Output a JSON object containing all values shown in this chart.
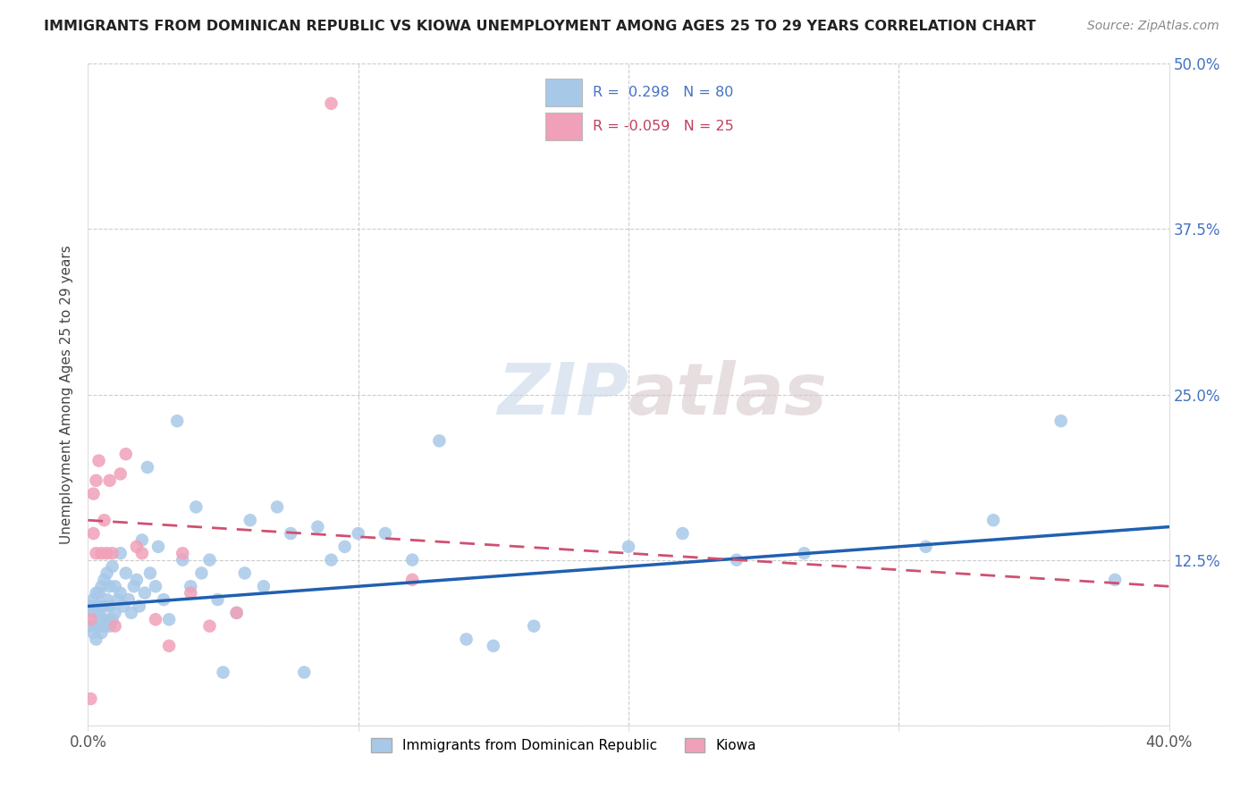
{
  "title": "IMMIGRANTS FROM DOMINICAN REPUBLIC VS KIOWA UNEMPLOYMENT AMONG AGES 25 TO 29 YEARS CORRELATION CHART",
  "source": "Source: ZipAtlas.com",
  "ylabel": "Unemployment Among Ages 25 to 29 years",
  "xlim": [
    0.0,
    0.4
  ],
  "ylim": [
    0.0,
    0.5
  ],
  "xticks": [
    0.0,
    0.1,
    0.2,
    0.3,
    0.4
  ],
  "yticks": [
    0.0,
    0.125,
    0.25,
    0.375,
    0.5
  ],
  "xtick_labels": [
    "0.0%",
    "",
    "",
    "",
    "40.0%"
  ],
  "ytick_labels": [
    "",
    "12.5%",
    "25.0%",
    "37.5%",
    "50.0%"
  ],
  "blue_R": 0.298,
  "blue_N": 80,
  "pink_R": -0.059,
  "pink_N": 25,
  "blue_color": "#a8c8e8",
  "pink_color": "#f0a0b8",
  "blue_line_color": "#2060b0",
  "pink_line_color": "#d05070",
  "legend_label_blue": "Immigrants from Dominican Republic",
  "legend_label_pink": "Kiowa",
  "watermark": "ZIPatlas",
  "blue_trend_start": 0.09,
  "blue_trend_end": 0.15,
  "pink_trend_start": 0.155,
  "pink_trend_end": 0.105,
  "blue_x": [
    0.001,
    0.001,
    0.002,
    0.002,
    0.002,
    0.003,
    0.003,
    0.003,
    0.003,
    0.004,
    0.004,
    0.004,
    0.005,
    0.005,
    0.005,
    0.005,
    0.006,
    0.006,
    0.006,
    0.007,
    0.007,
    0.007,
    0.008,
    0.008,
    0.008,
    0.009,
    0.009,
    0.01,
    0.01,
    0.011,
    0.012,
    0.012,
    0.013,
    0.014,
    0.015,
    0.016,
    0.017,
    0.018,
    0.019,
    0.02,
    0.021,
    0.022,
    0.023,
    0.025,
    0.026,
    0.028,
    0.03,
    0.033,
    0.035,
    0.038,
    0.04,
    0.042,
    0.045,
    0.048,
    0.05,
    0.055,
    0.058,
    0.06,
    0.065,
    0.07,
    0.075,
    0.08,
    0.085,
    0.09,
    0.095,
    0.1,
    0.11,
    0.12,
    0.13,
    0.14,
    0.15,
    0.165,
    0.2,
    0.22,
    0.24,
    0.265,
    0.31,
    0.335,
    0.36,
    0.38
  ],
  "blue_y": [
    0.075,
    0.09,
    0.07,
    0.085,
    0.095,
    0.065,
    0.075,
    0.09,
    0.1,
    0.075,
    0.085,
    0.1,
    0.07,
    0.08,
    0.09,
    0.105,
    0.075,
    0.09,
    0.11,
    0.08,
    0.095,
    0.115,
    0.075,
    0.09,
    0.105,
    0.08,
    0.12,
    0.085,
    0.105,
    0.095,
    0.1,
    0.13,
    0.09,
    0.115,
    0.095,
    0.085,
    0.105,
    0.11,
    0.09,
    0.14,
    0.1,
    0.195,
    0.115,
    0.105,
    0.135,
    0.095,
    0.08,
    0.23,
    0.125,
    0.105,
    0.165,
    0.115,
    0.125,
    0.095,
    0.04,
    0.085,
    0.115,
    0.155,
    0.105,
    0.165,
    0.145,
    0.04,
    0.15,
    0.125,
    0.135,
    0.145,
    0.145,
    0.125,
    0.215,
    0.065,
    0.06,
    0.075,
    0.135,
    0.145,
    0.125,
    0.13,
    0.135,
    0.155,
    0.23,
    0.11
  ],
  "pink_x": [
    0.001,
    0.001,
    0.002,
    0.002,
    0.003,
    0.003,
    0.004,
    0.005,
    0.006,
    0.007,
    0.008,
    0.009,
    0.01,
    0.012,
    0.014,
    0.018,
    0.02,
    0.025,
    0.03,
    0.035,
    0.038,
    0.045,
    0.055,
    0.09,
    0.12
  ],
  "pink_y": [
    0.02,
    0.08,
    0.145,
    0.175,
    0.13,
    0.185,
    0.2,
    0.13,
    0.155,
    0.13,
    0.185,
    0.13,
    0.075,
    0.19,
    0.205,
    0.135,
    0.13,
    0.08,
    0.06,
    0.13,
    0.1,
    0.075,
    0.085,
    0.47,
    0.11
  ]
}
